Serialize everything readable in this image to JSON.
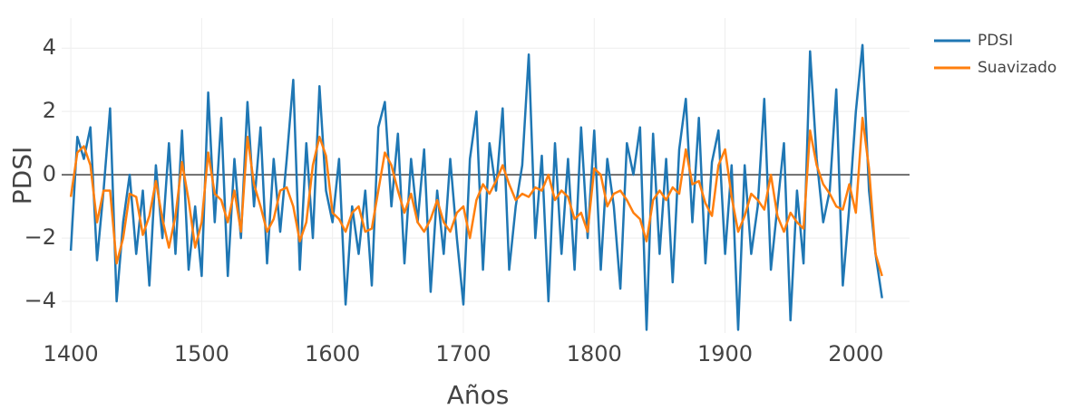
{
  "chart_data": {
    "type": "line",
    "x_label": "Años",
    "y_label": "PDSI",
    "x": [
      1400,
      1405,
      1410,
      1415,
      1420,
      1425,
      1430,
      1435,
      1440,
      1445,
      1450,
      1455,
      1460,
      1465,
      1470,
      1475,
      1480,
      1485,
      1490,
      1495,
      1500,
      1505,
      1510,
      1515,
      1520,
      1525,
      1530,
      1535,
      1540,
      1545,
      1550,
      1555,
      1560,
      1565,
      1570,
      1575,
      1580,
      1585,
      1590,
      1595,
      1600,
      1605,
      1610,
      1615,
      1620,
      1625,
      1630,
      1635,
      1640,
      1645,
      1650,
      1655,
      1660,
      1665,
      1670,
      1675,
      1680,
      1685,
      1690,
      1695,
      1700,
      1705,
      1710,
      1715,
      1720,
      1725,
      1730,
      1735,
      1740,
      1745,
      1750,
      1755,
      1760,
      1765,
      1770,
      1775,
      1780,
      1785,
      1790,
      1795,
      1800,
      1805,
      1810,
      1815,
      1820,
      1825,
      1830,
      1835,
      1840,
      1845,
      1850,
      1855,
      1860,
      1865,
      1870,
      1875,
      1880,
      1885,
      1890,
      1895,
      1900,
      1905,
      1910,
      1915,
      1920,
      1925,
      1930,
      1935,
      1940,
      1945,
      1950,
      1955,
      1960,
      1965,
      1970,
      1975,
      1980,
      1985,
      1990,
      1995,
      2000,
      2005,
      2010,
      2015,
      2020
    ],
    "series": [
      {
        "name": "PDSI",
        "color": "#1f77b4",
        "values": [
          -2.4,
          1.2,
          0.5,
          1.5,
          -2.7,
          -0.5,
          2.1,
          -4.0,
          -1.5,
          0.0,
          -2.5,
          -0.5,
          -3.5,
          0.3,
          -2.0,
          1.0,
          -2.5,
          1.4,
          -3.0,
          -1.0,
          -3.2,
          2.6,
          -1.5,
          1.8,
          -3.2,
          0.5,
          -2.0,
          2.3,
          -1.0,
          1.5,
          -2.8,
          0.5,
          -1.8,
          0.5,
          3.0,
          -3.0,
          1.0,
          -2.0,
          2.8,
          -0.5,
          -1.5,
          0.5,
          -4.1,
          -1.0,
          -2.5,
          -0.5,
          -3.5,
          1.5,
          2.3,
          -1.0,
          1.3,
          -2.8,
          0.5,
          -1.5,
          0.8,
          -3.7,
          -0.5,
          -2.5,
          0.5,
          -2.0,
          -4.1,
          0.5,
          2.0,
          -3.0,
          1.0,
          -0.5,
          2.1,
          -3.0,
          -1.0,
          0.3,
          3.8,
          -2.0,
          0.6,
          -4.0,
          1.0,
          -2.5,
          0.5,
          -3.0,
          1.5,
          -2.0,
          1.4,
          -3.0,
          0.5,
          -1.0,
          -3.6,
          1.0,
          0.0,
          1.5,
          -4.9,
          1.3,
          -2.5,
          0.5,
          -3.4,
          0.8,
          2.4,
          -1.5,
          1.8,
          -2.8,
          0.4,
          1.4,
          -2.5,
          0.3,
          -4.9,
          0.3,
          -2.5,
          -1.0,
          2.4,
          -3.0,
          -1.0,
          1.0,
          -4.6,
          -0.5,
          -2.8,
          3.9,
          0.5,
          -1.5,
          -0.5,
          2.7,
          -3.5,
          -1.0,
          2.0,
          4.1,
          -0.5,
          -2.5,
          -3.9
        ]
      },
      {
        "name": "Suavizado",
        "color": "#ff7f0e",
        "values": [
          -0.7,
          0.7,
          0.9,
          0.3,
          -1.5,
          -0.5,
          -0.5,
          -2.8,
          -2.0,
          -0.6,
          -0.7,
          -1.9,
          -1.3,
          -0.2,
          -1.4,
          -2.3,
          -1.3,
          0.4,
          -0.8,
          -2.3,
          -1.5,
          0.7,
          -0.6,
          -0.8,
          -1.5,
          -0.5,
          -1.8,
          1.2,
          -0.3,
          -1.0,
          -1.8,
          -1.4,
          -0.5,
          -0.4,
          -1.0,
          -2.1,
          -1.5,
          0.3,
          1.2,
          0.6,
          -1.2,
          -1.4,
          -1.8,
          -1.2,
          -1.0,
          -1.8,
          -1.7,
          -0.5,
          0.7,
          0.3,
          -0.5,
          -1.2,
          -0.6,
          -1.5,
          -1.8,
          -1.4,
          -0.8,
          -1.5,
          -1.8,
          -1.2,
          -1.0,
          -2.0,
          -0.8,
          -0.3,
          -0.6,
          -0.2,
          0.3,
          -0.3,
          -0.8,
          -0.6,
          -0.7,
          -0.4,
          -0.5,
          0.0,
          -0.8,
          -0.5,
          -0.7,
          -1.4,
          -1.2,
          -1.8,
          0.2,
          0.0,
          -1.0,
          -0.6,
          -0.5,
          -0.8,
          -1.2,
          -1.4,
          -2.1,
          -0.8,
          -0.5,
          -0.8,
          -0.4,
          -0.6,
          0.8,
          -0.3,
          -0.2,
          -0.9,
          -1.3,
          0.3,
          0.8,
          -0.7,
          -1.8,
          -1.3,
          -0.6,
          -0.8,
          -1.1,
          0.0,
          -1.3,
          -1.8,
          -1.2,
          -1.5,
          -1.7,
          1.4,
          0.3,
          -0.3,
          -0.6,
          -1.0,
          -1.1,
          -0.3,
          -1.2,
          1.8,
          0.2,
          -2.5,
          -3.2
        ]
      }
    ],
    "xlim": [
      1393,
      2041
    ],
    "xticks": [
      1400,
      1500,
      1600,
      1700,
      1800,
      1900,
      2000
    ],
    "ylim": [
      -5,
      4.95
    ],
    "yticks": [
      {
        "value": -4,
        "label": "−4"
      },
      {
        "value": -2,
        "label": "−2"
      },
      0,
      2,
      4
    ],
    "grid": true,
    "zeroline": true,
    "legend": "top-right"
  }
}
